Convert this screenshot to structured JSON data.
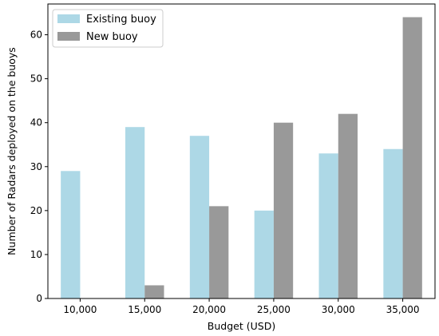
{
  "chart_data": {
    "type": "bar",
    "categories": [
      "10,000",
      "15,000",
      "20,000",
      "25,000",
      "30,000",
      "35,000"
    ],
    "series": [
      {
        "name": "Existing buoy",
        "values": [
          29,
          39,
          37,
          20,
          33,
          34
        ],
        "color": "#add8e6"
      },
      {
        "name": "New buoy",
        "values": [
          0,
          3,
          21,
          40,
          42,
          64
        ],
        "color": "#999999"
      }
    ],
    "xlabel": "Budget (USD)",
    "ylabel": "Number of Radars deployed on the buoys",
    "ylim": [
      0,
      67
    ],
    "yticks": [
      0,
      10,
      20,
      30,
      40,
      50,
      60
    ],
    "legend_placement": "top-left",
    "grid": false
  }
}
